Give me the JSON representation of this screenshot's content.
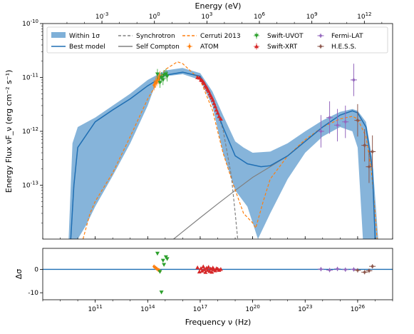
{
  "chart_data": [
    {
      "type": "line",
      "x_axis": "log",
      "y_axis": "log",
      "xlabel": "",
      "ylabel": "Energy Flux νF_ν (erg cm⁻² s⁻¹)",
      "top_xlabel": "Energy (eV)",
      "xlim": [
        100000000.0,
        1e+28
      ],
      "ylim": [
        1e-14,
        1e-10
      ],
      "x_tick_labels": [
        "10^11",
        "10^14",
        "10^17",
        "10^20",
        "10^23",
        "10^26"
      ],
      "x_tick_values": [
        100000000000.0,
        100000000000000.0,
        1e+17,
        1e+20,
        1e+23,
        1e+26
      ],
      "y_tick_labels": [
        "10^-13",
        "10^-12",
        "10^-11",
        "10^-10"
      ],
      "y_tick_values": [
        1e-13,
        1e-12,
        1e-11,
        1e-10
      ],
      "top_tick_labels": [
        "10^-3",
        "10^0",
        "10^3",
        "10^6",
        "10^9",
        "10^12"
      ],
      "top_tick_values_hz": [
        241800000000.0,
        241800000000000.0,
        2.418e+17,
        2.418e+20,
        2.418e+23,
        2.418e+26
      ],
      "legend": {
        "position": "top",
        "entries": [
          "Within 1σ",
          "Best model",
          "Synchrotron",
          "Self Compton",
          "Cerruti 2013",
          "ATOM",
          "Swift-UVOT",
          "Swift-XRT",
          "Fermi-LAT",
          "H.E.S.S."
        ]
      },
      "band": {
        "name": "Within 1σ",
        "color": "#7fb0d8",
        "upper": [
          [
            3000000000.0,
            1e-14
          ],
          [
            5000000000.0,
            6e-13
          ],
          [
            10000000000.0,
            1.2e-12
          ],
          [
            100000000000.0,
            1.8e-12
          ],
          [
            1000000000000.0,
            3e-12
          ],
          [
            10000000000000.0,
            5e-12
          ],
          [
            100000000000000.0,
            9e-12
          ],
          [
            1000000000000000.0,
            1.35e-11
          ],
          [
            1e+16,
            1.5e-11
          ],
          [
            1e+17,
            1.2e-11
          ],
          [
            5e+17,
            5.5e-12
          ],
          [
            2e+18,
            2e-12
          ],
          [
            1e+19,
            6.5e-13
          ],
          [
            3e+19,
            5e-13
          ],
          [
            1e+20,
            4e-13
          ],
          [
            1e+21,
            4.2e-13
          ],
          [
            1e+22,
            6e-13
          ],
          [
            1e+23,
            1e-12
          ],
          [
            1e+24,
            1.6e-12
          ],
          [
            1e+25,
            2.3e-12
          ],
          [
            5e+25,
            2.6e-12
          ],
          [
            1e+26,
            2.4e-12
          ],
          [
            3e+26,
            1.5e-12
          ],
          [
            7e+26,
            3e-13
          ],
          [
            1.5e+27,
            1e-14
          ]
        ],
        "lower": [
          [
            10000000000.0,
            1e-14
          ],
          [
            30000000000.0,
            1.8e-14
          ],
          [
            100000000000.0,
            4e-14
          ],
          [
            1000000000000.0,
            1.5e-13
          ],
          [
            10000000000000.0,
            6e-13
          ],
          [
            100000000000000.0,
            3e-12
          ],
          [
            300000000000000.0,
            8e-12
          ],
          [
            1000000000000000.0,
            1.05e-11
          ],
          [
            1e+16,
            1.15e-11
          ],
          [
            1e+17,
            9e-12
          ],
          [
            5e+17,
            3e-12
          ],
          [
            2e+18,
            4e-13
          ],
          [
            1e+19,
            8e-14
          ],
          [
            5e+19,
            4e-14
          ],
          [
            2e+20,
            1e-14
          ],
          [
            1e+21,
            3e-14
          ],
          [
            1e+22,
            1.3e-13
          ],
          [
            1e+23,
            4e-13
          ],
          [
            1e+24,
            8e-13
          ],
          [
            1e+25,
            1.2e-12
          ],
          [
            5e+25,
            1e-12
          ],
          [
            1e+26,
            5e-13
          ],
          [
            2e+26,
            1e-14
          ]
        ]
      },
      "series": [
        {
          "name": "Best model",
          "style": "solid",
          "color": "#1f6fb4",
          "points": [
            [
              4000000000.0,
              1e-14
            ],
            [
              6000000000.0,
              1e-13
            ],
            [
              10000000000.0,
              5e-13
            ],
            [
              100000000000.0,
              1.5e-12
            ],
            [
              1000000000000.0,
              2.5e-12
            ],
            [
              10000000000000.0,
              4e-12
            ],
            [
              100000000000000.0,
              7e-12
            ],
            [
              1000000000000000.0,
              1.1e-11
            ],
            [
              1e+16,
              1.25e-11
            ],
            [
              1e+17,
              1.05e-11
            ],
            [
              5e+17,
              4e-12
            ],
            [
              2e+18,
              1.2e-12
            ],
            [
              1e+19,
              3.5e-13
            ],
            [
              5e+19,
              2.5e-13
            ],
            [
              3e+20,
              2.2e-13
            ],
            [
              1e+21,
              2.3e-13
            ],
            [
              1e+22,
              3.5e-13
            ],
            [
              1e+23,
              6.5e-13
            ],
            [
              1e+24,
              1.2e-12
            ],
            [
              1e+25,
              2e-12
            ],
            [
              5e+25,
              2.4e-12
            ],
            [
              1e+26,
              2.2e-12
            ],
            [
              3e+26,
              1.2e-12
            ],
            [
              7e+26,
              2e-13
            ],
            [
              1e+27,
              1e-14
            ]
          ]
        },
        {
          "name": "Synchrotron",
          "style": "dashed",
          "color": "#808080",
          "points": [
            [
              4000000000.0,
              1e-14
            ],
            [
              6000000000.0,
              1e-13
            ],
            [
              10000000000.0,
              5e-13
            ],
            [
              100000000000.0,
              1.5e-12
            ],
            [
              1000000000000.0,
              2.5e-12
            ],
            [
              10000000000000.0,
              4e-12
            ],
            [
              100000000000000.0,
              7e-12
            ],
            [
              1000000000000000.0,
              1.1e-11
            ],
            [
              1e+16,
              1.25e-11
            ],
            [
              1e+17,
              1.05e-11
            ],
            [
              5e+17,
              4e-12
            ],
            [
              2e+18,
              1.1e-12
            ],
            [
              6e+18,
              1.5e-13
            ],
            [
              1e+19,
              3e-14
            ],
            [
              1.4e+19,
              1e-14
            ]
          ]
        },
        {
          "name": "Self Compton",
          "style": "solid",
          "color": "#808080",
          "points": [
            [
              3000000000000000.0,
              1e-14
            ],
            [
              1e+17,
              2.5e-14
            ],
            [
              1e+18,
              4.5e-14
            ],
            [
              1e+19,
              8e-14
            ],
            [
              1e+20,
              1.4e-13
            ],
            [
              1e+21,
              2.2e-13
            ],
            [
              1e+22,
              3.5e-13
            ],
            [
              1e+23,
              6.5e-13
            ],
            [
              1e+24,
              1.2e-12
            ],
            [
              1e+25,
              2e-12
            ],
            [
              5e+25,
              2.4e-12
            ],
            [
              1e+26,
              2.2e-12
            ],
            [
              3e+26,
              1.2e-12
            ],
            [
              7e+26,
              2e-13
            ],
            [
              1e+27,
              1e-14
            ]
          ]
        },
        {
          "name": "Cerruti 2013",
          "style": "dashed",
          "color": "#ff7f0e",
          "points": [
            [
              20000000000.0,
              1e-14
            ],
            [
              50000000000.0,
              3e-14
            ],
            [
              100000000000.0,
              5e-14
            ],
            [
              1000000000000.0,
              1.7e-13
            ],
            [
              10000000000000.0,
              8e-13
            ],
            [
              100000000000000.0,
              4e-12
            ],
            [
              1000000000000000.0,
              1.4e-11
            ],
            [
              5000000000000000.0,
              1.95e-11
            ],
            [
              1e+16,
              1.8e-11
            ],
            [
              1e+17,
              9e-12
            ],
            [
              5e+17,
              2.5e-12
            ],
            [
              2e+18,
              4e-13
            ],
            [
              8e+18,
              1e-13
            ],
            [
              3e+19,
              3e-14
            ],
            [
              1e+20,
              2e-14
            ],
            [
              1.5e+20,
              1.6e-14
            ],
            [
              4e+20,
              5e-14
            ],
            [
              1e+21,
              1.3e-13
            ],
            [
              1e+22,
              3.5e-13
            ],
            [
              1e+23,
              7e-13
            ],
            [
              1e+24,
              1.2e-12
            ],
            [
              1e+25,
              1.7e-12
            ],
            [
              5e+25,
              1.9e-12
            ],
            [
              1e+26,
              1.7e-12
            ],
            [
              3e+26,
              8e-13
            ],
            [
              6e+26,
              2e-13
            ],
            [
              1e+27,
              3e-14
            ],
            [
              1.3e+27,
              1e-14
            ]
          ]
        }
      ],
      "data_points": [
        {
          "name": "ATOM",
          "marker": "diamond",
          "color": "#ff7f0e",
          "points": [
            [
              230000000000000.0,
              7.2e-12
            ],
            [
              280000000000000.0,
              8e-12
            ],
            [
              330000000000000.0,
              8.6e-12
            ],
            [
              400000000000000.0,
              9.3e-12
            ],
            [
              450000000000000.0,
              9.8e-12
            ],
            [
              500000000000000.0,
              1.05e-11
            ]
          ]
        },
        {
          "name": "Swift-UVOT",
          "marker": "triangle-down",
          "color": "#2ca02c",
          "points": [
            [
              360000000000000.0,
              1.15e-11
            ],
            [
              500000000000000.0,
              8e-12
            ],
            [
              610000000000000.0,
              1e-11
            ],
            [
              750000000000000.0,
              9e-12
            ],
            [
              850000000000000.0,
              1.1e-11
            ],
            [
              1100000000000000.0,
              1.15e-11
            ],
            [
              1300000000000000.0,
              1.05e-11
            ]
          ]
        },
        {
          "name": "Swift-XRT",
          "marker": "triangle-up",
          "color": "#d62728",
          "points": [
            [
              7e+16,
              1e-11
            ],
            [
              9e+16,
              9.8e-12
            ],
            [
              1.1e+17,
              9e-12
            ],
            [
              1.3e+17,
              8.8e-12
            ],
            [
              1.5e+17,
              8.2e-12
            ],
            [
              1.7e+17,
              7.8e-12
            ],
            [
              2e+17,
              7e-12
            ],
            [
              2.3e+17,
              6.6e-12
            ],
            [
              2.6e+17,
              6e-12
            ],
            [
              3e+17,
              5.6e-12
            ],
            [
              3.5e+17,
              5e-12
            ],
            [
              4e+17,
              4.6e-12
            ],
            [
              4.6e+17,
              4.2e-12
            ],
            [
              5.3e+17,
              3.8e-12
            ],
            [
              6.2e+17,
              3.3e-12
            ],
            [
              7.2e+17,
              2.9e-12
            ],
            [
              8.5e+17,
              2.5e-12
            ],
            [
              1e+18,
              2.2e-12
            ],
            [
              1.2e+18,
              1.9e-12
            ],
            [
              1.5e+18,
              1.7e-12
            ]
          ]
        },
        {
          "name": "Fermi-LAT",
          "marker": "cross-errorbar",
          "color": "#9467bd",
          "points": [
            [
              8e+23,
              1e-12
            ],
            [
              2.5e+24,
              1.8e-12
            ],
            [
              7e+24,
              1.3e-12
            ],
            [
              2e+25,
              1.5e-12
            ],
            [
              6e+25,
              9e-12
            ]
          ]
        },
        {
          "name": "H.E.S.S.",
          "marker": "cross-errorbar",
          "color": "#8c564b",
          "points": [
            [
              1e+26,
              1.6e-12
            ],
            [
              2.5e+26,
              5.5e-13
            ],
            [
              4.5e+26,
              2.2e-13
            ],
            [
              7e+26,
              4.2e-13
            ]
          ]
        }
      ]
    },
    {
      "type": "scatter",
      "x_axis": "log",
      "xlabel": "Frequency ν (Hz)",
      "ylabel": "Δσ",
      "xlim": [
        100000000.0,
        1e+28
      ],
      "ylim": [
        -13,
        9
      ],
      "y_tick_labels": [
        "-10",
        "0"
      ],
      "y_tick_values": [
        -10,
        0
      ],
      "zero_line_color": "#1f6fb4",
      "series": [
        {
          "name": "ATOM",
          "marker": "diamond",
          "color": "#ff7f0e",
          "points": [
            [
              230000000000000.0,
              1.2
            ],
            [
              280000000000000.0,
              0.7
            ],
            [
              330000000000000.0,
              0.3
            ],
            [
              400000000000000.0,
              -0.2
            ],
            [
              450000000000000.0,
              -0.4
            ],
            [
              500000000000000.0,
              -0.8
            ]
          ]
        },
        {
          "name": "Swift-UVOT",
          "marker": "triangle-down",
          "color": "#2ca02c",
          "points": [
            [
              360000000000000.0,
              6.8
            ],
            [
              500000000000000.0,
              -1.0
            ],
            [
              610000000000000.0,
              -9.8
            ],
            [
              750000000000000.0,
              3.8
            ],
            [
              850000000000000.0,
              2.0
            ],
            [
              1100000000000000.0,
              5.3
            ],
            [
              1300000000000000.0,
              4.5
            ]
          ]
        },
        {
          "name": "Swift-XRT",
          "marker": "triangle-up",
          "color": "#d62728",
          "points": [
            [
              7e+16,
              0.8
            ],
            [
              9e+16,
              -1.0
            ],
            [
              1.1e+17,
              0.4
            ],
            [
              1.3e+17,
              -0.6
            ],
            [
              1.5e+17,
              1.2
            ],
            [
              1.7e+17,
              0.0
            ],
            [
              2e+17,
              -1.2
            ],
            [
              2.3e+17,
              0.6
            ],
            [
              2.6e+17,
              -0.3
            ],
            [
              3e+17,
              1.0
            ],
            [
              3.5e+17,
              -0.8
            ],
            [
              4e+17,
              0.3
            ],
            [
              4.6e+17,
              -1.1
            ],
            [
              5.3e+17,
              0.7
            ],
            [
              6.2e+17,
              0.0
            ],
            [
              7.2e+17,
              -0.5
            ],
            [
              8.5e+17,
              0.4
            ],
            [
              1e+18,
              0.2
            ],
            [
              1.2e+18,
              -0.3
            ],
            [
              1.5e+18,
              0.1
            ]
          ]
        },
        {
          "name": "Fermi-LAT",
          "marker": "cross-errorbar",
          "color": "#9467bd",
          "points": [
            [
              8e+23,
              0.1
            ],
            [
              2.5e+24,
              -0.3
            ],
            [
              7e+24,
              0.2
            ],
            [
              2e+25,
              -0.1
            ],
            [
              6e+25,
              0.0
            ]
          ]
        },
        {
          "name": "H.E.S.S.",
          "marker": "cross-errorbar",
          "color": "#8c564b",
          "points": [
            [
              1e+26,
              -0.4
            ],
            [
              2.5e+26,
              -1.2
            ],
            [
              4.5e+26,
              -0.6
            ],
            [
              7e+26,
              1.3
            ]
          ]
        }
      ]
    }
  ]
}
